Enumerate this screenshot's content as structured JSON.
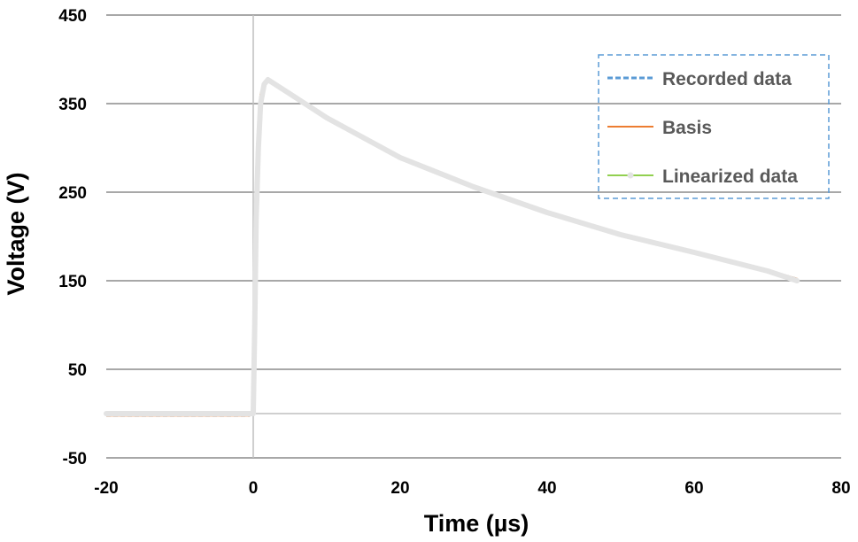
{
  "chart_data": {
    "type": "line",
    "title": "",
    "xlabel": "Time (µs)",
    "ylabel": "Voltage (V)",
    "xlim": [
      -20,
      80
    ],
    "ylim": [
      -50,
      450
    ],
    "xticks": [
      -20,
      0,
      20,
      40,
      60,
      80
    ],
    "yticks": [
      -50,
      50,
      150,
      250,
      350,
      450
    ],
    "xtick_labels": [
      "-20",
      "0",
      "20",
      "40",
      "60",
      "80"
    ],
    "ytick_labels": [
      "-50",
      "50",
      "150",
      "250",
      "350",
      "450"
    ],
    "grid": "horizontal",
    "legend": {
      "position": "top-right",
      "border": "dashed"
    },
    "series": [
      {
        "name": "Recorded data",
        "color": "#5B9BD5",
        "style": "dashed",
        "x": [
          -20,
          -10,
          -0.5,
          0,
          0.3,
          0.6,
          1,
          1.5,
          2,
          5,
          10,
          20,
          30,
          40,
          50,
          60,
          70,
          74
        ],
        "y": [
          -2,
          -2,
          -2,
          0,
          150,
          300,
          360,
          374,
          378,
          362,
          335,
          290,
          257,
          228,
          203,
          183,
          162,
          152
        ]
      },
      {
        "name": "Basis",
        "color": "#ED7D31",
        "style": "solid",
        "x": [
          -20,
          -10,
          -0.5,
          0,
          0.3,
          0.6,
          1,
          1.5,
          2,
          5,
          10,
          20,
          30,
          40,
          50,
          60,
          70,
          74
        ],
        "y": [
          -2,
          -2,
          -2,
          0,
          150,
          300,
          360,
          374,
          378,
          362,
          335,
          290,
          257,
          228,
          203,
          183,
          162,
          152
        ]
      },
      {
        "name": "Linearized data",
        "color": "#92D050",
        "style": "solid-markers",
        "x": [
          -20,
          -10,
          -0.5,
          0,
          0.2,
          0.4,
          0.7,
          1,
          1.5,
          2,
          5,
          10,
          20,
          30,
          40,
          50,
          60,
          70,
          74
        ],
        "y": [
          0,
          0,
          0,
          0,
          100,
          220,
          300,
          350,
          372,
          377,
          361,
          334,
          289,
          256,
          227,
          202,
          182,
          161,
          150
        ]
      }
    ],
    "overlay_color": "#E3E3E3"
  }
}
